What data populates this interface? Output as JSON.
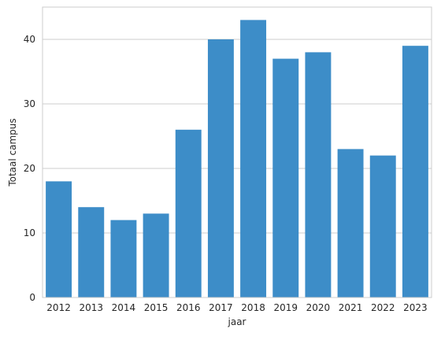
{
  "chart_data": {
    "type": "bar",
    "title": "",
    "xlabel": "jaar",
    "ylabel": "Totaal campus",
    "categories": [
      "2012",
      "2013",
      "2014",
      "2015",
      "2016",
      "2017",
      "2018",
      "2019",
      "2020",
      "2021",
      "2022",
      "2023"
    ],
    "values": [
      18,
      14,
      12,
      13,
      26,
      40,
      43,
      37,
      38,
      23,
      22,
      39
    ],
    "ylim": [
      0,
      45
    ],
    "yticks": [
      0,
      10,
      20,
      30,
      40
    ],
    "grid": true,
    "bar_color": "#3d8dc8",
    "grid_color": "#cccccc",
    "spine_color": "#cccccc"
  }
}
